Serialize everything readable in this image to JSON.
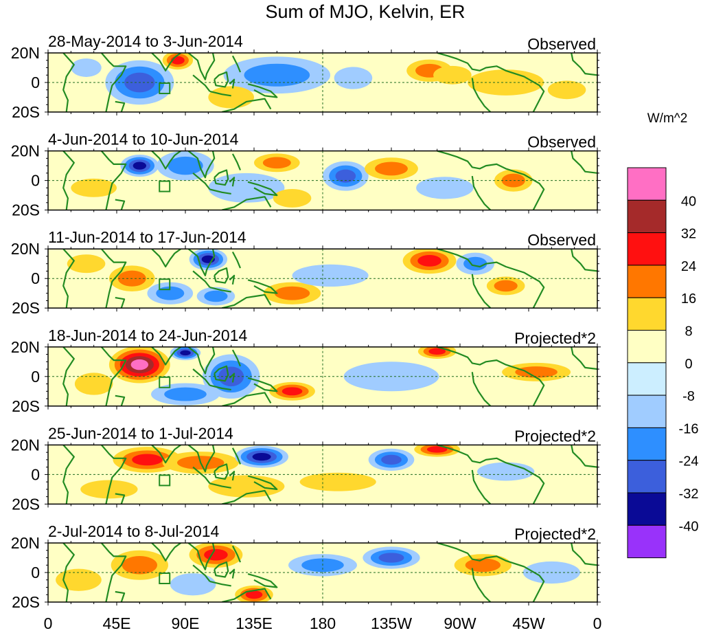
{
  "chart_data": {
    "type": "heatmap",
    "title": "Sum of MJO, Kelvin, ER",
    "units_label": "W/m^2",
    "x_ticks": [
      "0",
      "45E",
      "90E",
      "135E",
      "180",
      "135W",
      "90W",
      "45W",
      "0"
    ],
    "x_tick_lon": [
      0,
      45,
      90,
      135,
      180,
      225,
      270,
      315,
      360
    ],
    "y_ticks": [
      "20N",
      "0",
      "20S"
    ],
    "y_tick_lat": [
      20,
      0,
      -20
    ],
    "lon_range": [
      0,
      360
    ],
    "lat_range": [
      -20,
      20
    ],
    "colorbar": {
      "labels": [
        "40",
        "32",
        "24",
        "16",
        "8",
        "0",
        "-8",
        "-16",
        "-24",
        "-32",
        "-40"
      ],
      "colors": [
        "#ff6fc4",
        "#a52a2a",
        "#ff1010",
        "#ff7700",
        "#ffd82e",
        "#ffffc4",
        "#cceeff",
        "#a0ccff",
        "#2e8fff",
        "#3c5fdc",
        "#0a0a96",
        "#9932fa"
      ]
    },
    "coast_color": "#228b22",
    "panels": [
      {
        "date_range": "28-May-2014 to 3-Jun-2014",
        "label": "Observed",
        "blobs": [
          {
            "lon": 60,
            "lat": 0,
            "rx": 18,
            "ry": 12,
            "v": -24
          },
          {
            "lon": 150,
            "lat": 5,
            "rx": 28,
            "ry": 10,
            "v": -16
          },
          {
            "lon": 200,
            "lat": 3,
            "rx": 10,
            "ry": 6,
            "v": -8
          },
          {
            "lon": 85,
            "lat": 15,
            "rx": 8,
            "ry": 5,
            "v": 24
          },
          {
            "lon": 250,
            "lat": 8,
            "rx": 12,
            "ry": 6,
            "v": 16
          },
          {
            "lon": 265,
            "lat": 5,
            "rx": 10,
            "ry": 5,
            "v": 8
          },
          {
            "lon": 300,
            "lat": 0,
            "rx": 20,
            "ry": 7,
            "v": 8
          },
          {
            "lon": 25,
            "lat": 10,
            "rx": 8,
            "ry": 5,
            "v": -8
          },
          {
            "lon": 120,
            "lat": -10,
            "rx": 12,
            "ry": 6,
            "v": 8
          },
          {
            "lon": 340,
            "lat": -5,
            "rx": 10,
            "ry": 5,
            "v": 8
          }
        ]
      },
      {
        "date_range": "4-Jun-2014 to 10-Jun-2014",
        "label": "Observed",
        "blobs": [
          {
            "lon": 60,
            "lat": 10,
            "rx": 10,
            "ry": 6,
            "v": -32
          },
          {
            "lon": 195,
            "lat": 3,
            "rx": 12,
            "ry": 8,
            "v": -24
          },
          {
            "lon": 150,
            "lat": 12,
            "rx": 12,
            "ry": 5,
            "v": 16
          },
          {
            "lon": 225,
            "lat": 8,
            "rx": 14,
            "ry": 6,
            "v": 16
          },
          {
            "lon": 305,
            "lat": 0,
            "rx": 10,
            "ry": 6,
            "v": 16
          },
          {
            "lon": 90,
            "lat": 10,
            "rx": 15,
            "ry": 8,
            "v": -16
          },
          {
            "lon": 130,
            "lat": -5,
            "rx": 20,
            "ry": 8,
            "v": -8
          },
          {
            "lon": 260,
            "lat": -5,
            "rx": 15,
            "ry": 6,
            "v": -8
          },
          {
            "lon": 160,
            "lat": -12,
            "rx": 10,
            "ry": 5,
            "v": 8
          },
          {
            "lon": 30,
            "lat": -5,
            "rx": 12,
            "ry": 5,
            "v": 8
          }
        ]
      },
      {
        "date_range": "11-Jun-2014 to 17-Jun-2014",
        "label": "Observed",
        "blobs": [
          {
            "lon": 105,
            "lat": 13,
            "rx": 10,
            "ry": 6,
            "v": -32
          },
          {
            "lon": 250,
            "lat": 12,
            "rx": 14,
            "ry": 7,
            "v": 24
          },
          {
            "lon": 160,
            "lat": -10,
            "rx": 15,
            "ry": 6,
            "v": 16
          },
          {
            "lon": 55,
            "lat": 0,
            "rx": 12,
            "ry": 7,
            "v": 16
          },
          {
            "lon": 300,
            "lat": -5,
            "rx": 10,
            "ry": 5,
            "v": 16
          },
          {
            "lon": 80,
            "lat": -10,
            "rx": 12,
            "ry": 6,
            "v": -16
          },
          {
            "lon": 110,
            "lat": -12,
            "rx": 10,
            "ry": 5,
            "v": -16
          },
          {
            "lon": 185,
            "lat": 2,
            "rx": 20,
            "ry": 6,
            "v": -8
          },
          {
            "lon": 280,
            "lat": 10,
            "rx": 10,
            "ry": 6,
            "v": -16
          },
          {
            "lon": 25,
            "lat": 10,
            "rx": 10,
            "ry": 5,
            "v": 8
          }
        ]
      },
      {
        "date_range": "18-Jun-2014 to 24-Jun-2014",
        "label": "Projected*2",
        "blobs": [
          {
            "lon": 60,
            "lat": 8,
            "rx": 16,
            "ry": 10,
            "v": 40
          },
          {
            "lon": 120,
            "lat": 0,
            "rx": 15,
            "ry": 12,
            "v": -24
          },
          {
            "lon": 90,
            "lat": -12,
            "rx": 18,
            "ry": 6,
            "v": -16
          },
          {
            "lon": 90,
            "lat": 16,
            "rx": 8,
            "ry": 4,
            "v": -32
          },
          {
            "lon": 160,
            "lat": -10,
            "rx": 12,
            "ry": 5,
            "v": 24
          },
          {
            "lon": 255,
            "lat": 17,
            "rx": 10,
            "ry": 4,
            "v": 24
          },
          {
            "lon": 320,
            "lat": 3,
            "rx": 18,
            "ry": 5,
            "v": 16
          },
          {
            "lon": 225,
            "lat": 0,
            "rx": 25,
            "ry": 8,
            "v": -8
          },
          {
            "lon": 30,
            "lat": -5,
            "rx": 10,
            "ry": 6,
            "v": 8
          }
        ]
      },
      {
        "date_range": "25-Jun-2014 to 1-Jul-2014",
        "label": "Projected*2",
        "blobs": [
          {
            "lon": 65,
            "lat": 10,
            "rx": 18,
            "ry": 7,
            "v": 24
          },
          {
            "lon": 100,
            "lat": 8,
            "rx": 20,
            "ry": 6,
            "v": 16
          },
          {
            "lon": 140,
            "lat": 12,
            "rx": 14,
            "ry": 6,
            "v": -32
          },
          {
            "lon": 225,
            "lat": 10,
            "rx": 12,
            "ry": 6,
            "v": -24
          },
          {
            "lon": 255,
            "lat": 17,
            "rx": 12,
            "ry": 4,
            "v": 24
          },
          {
            "lon": 130,
            "lat": -8,
            "rx": 20,
            "ry": 6,
            "v": 8
          },
          {
            "lon": 300,
            "lat": 2,
            "rx": 15,
            "ry": 5,
            "v": -8
          },
          {
            "lon": 40,
            "lat": -10,
            "rx": 15,
            "ry": 5,
            "v": 8
          },
          {
            "lon": 190,
            "lat": -5,
            "rx": 20,
            "ry": 5,
            "v": 8
          }
        ]
      },
      {
        "date_range": "2-Jul-2014 to 8-Jul-2014",
        "label": "Projected*2",
        "blobs": [
          {
            "lon": 110,
            "lat": 12,
            "rx": 14,
            "ry": 7,
            "v": 24
          },
          {
            "lon": 135,
            "lat": -15,
            "rx": 10,
            "ry": 5,
            "v": 24
          },
          {
            "lon": 225,
            "lat": 10,
            "rx": 15,
            "ry": 6,
            "v": -24
          },
          {
            "lon": 60,
            "lat": 5,
            "rx": 15,
            "ry": 8,
            "v": 16
          },
          {
            "lon": 180,
            "lat": 5,
            "rx": 18,
            "ry": 6,
            "v": -16
          },
          {
            "lon": 95,
            "lat": -8,
            "rx": 12,
            "ry": 6,
            "v": -8
          },
          {
            "lon": 285,
            "lat": 5,
            "rx": 15,
            "ry": 6,
            "v": 16
          },
          {
            "lon": 330,
            "lat": 0,
            "rx": 15,
            "ry": 6,
            "v": -8
          },
          {
            "lon": 20,
            "lat": -5,
            "rx": 12,
            "ry": 6,
            "v": 8
          }
        ]
      }
    ]
  }
}
